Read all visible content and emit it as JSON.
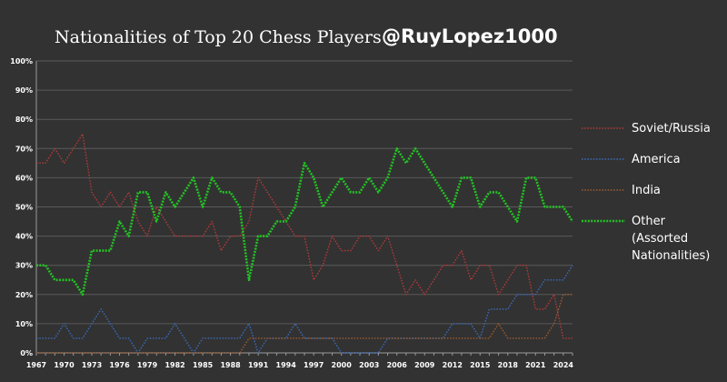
{
  "header": {
    "title": "Nationalities of Top 20 Chess Players",
    "handle": "@RuyLopez1000"
  },
  "colors": {
    "background": "#323232",
    "grid": "#5a5a5a",
    "axis": "#9a9a9a",
    "text": "#ffffff"
  },
  "chart_data": {
    "type": "line",
    "title": "Nationalities of Top 20 Chess Players",
    "xlabel": "",
    "ylabel": "",
    "x": [
      1967,
      1968,
      1969,
      1970,
      1971,
      1972,
      1973,
      1974,
      1975,
      1976,
      1977,
      1978,
      1979,
      1980,
      1981,
      1982,
      1983,
      1984,
      1985,
      1986,
      1987,
      1988,
      1989,
      1990,
      1991,
      1992,
      1993,
      1994,
      1995,
      1996,
      1997,
      1998,
      1999,
      2000,
      2001,
      2002,
      2003,
      2004,
      2005,
      2006,
      2007,
      2008,
      2009,
      2010,
      2011,
      2012,
      2013,
      2014,
      2015,
      2016,
      2017,
      2018,
      2019,
      2020,
      2021,
      2022,
      2023,
      2024,
      2025
    ],
    "x_ticks": [
      "1967",
      "1970",
      "1973",
      "1976",
      "1979",
      "1982",
      "1985",
      "1988",
      "1991",
      "1994",
      "1997",
      "2000",
      "2003",
      "2006",
      "2009",
      "2012",
      "2015",
      "2018",
      "2021",
      "2024"
    ],
    "y_ticks": [
      "0%",
      "10%",
      "20%",
      "30%",
      "40%",
      "50%",
      "60%",
      "70%",
      "80%",
      "90%",
      "100%"
    ],
    "ylim": [
      0,
      100
    ],
    "grid": true,
    "legend_position": "right",
    "series": [
      {
        "name": "Soviet/Russia",
        "color": "#b03a3a",
        "values": [
          65,
          65,
          70,
          65,
          70,
          75,
          55,
          50,
          55,
          50,
          55,
          45,
          40,
          50,
          45,
          40,
          40,
          40,
          40,
          45,
          35,
          40,
          40,
          45,
          60,
          55,
          50,
          45,
          40,
          40,
          25,
          30,
          40,
          35,
          35,
          40,
          40,
          35,
          40,
          30,
          20,
          25,
          20,
          25,
          30,
          30,
          35,
          25,
          30,
          30,
          20,
          25,
          30,
          30,
          15,
          15,
          20,
          5,
          5
        ]
      },
      {
        "name": "America",
        "color": "#3a6ab8",
        "values": [
          5,
          5,
          5,
          10,
          5,
          5,
          10,
          15,
          10,
          5,
          5,
          0,
          5,
          5,
          5,
          10,
          5,
          0,
          5,
          5,
          5,
          5,
          5,
          10,
          0,
          5,
          5,
          5,
          10,
          5,
          5,
          5,
          5,
          0,
          0,
          0,
          0,
          0,
          5,
          5,
          5,
          5,
          5,
          5,
          5,
          10,
          10,
          10,
          5,
          15,
          15,
          15,
          20,
          20,
          20,
          25,
          25,
          25,
          30
        ]
      },
      {
        "name": "India",
        "color": "#9a5a30",
        "values": [
          0,
          0,
          0,
          0,
          0,
          0,
          0,
          0,
          0,
          0,
          0,
          0,
          0,
          0,
          0,
          0,
          0,
          0,
          0,
          0,
          0,
          0,
          0,
          5,
          5,
          5,
          5,
          5,
          5,
          5,
          5,
          5,
          5,
          5,
          5,
          5,
          5,
          5,
          5,
          5,
          5,
          5,
          5,
          5,
          5,
          5,
          5,
          5,
          5,
          5,
          10,
          5,
          5,
          5,
          5,
          5,
          10,
          20,
          20
        ]
      },
      {
        "name": "Other\n(Assorted\nNationalities)",
        "color": "#22c422",
        "values": [
          30,
          30,
          25,
          25,
          25,
          20,
          35,
          35,
          35,
          45,
          40,
          55,
          55,
          45,
          55,
          50,
          55,
          60,
          50,
          60,
          55,
          55,
          50,
          25,
          40,
          40,
          45,
          45,
          50,
          65,
          60,
          50,
          55,
          60,
          55,
          55,
          60,
          55,
          60,
          70,
          65,
          70,
          65,
          60,
          55,
          50,
          60,
          60,
          50,
          55,
          55,
          50,
          45,
          60,
          60,
          50,
          50,
          50,
          45
        ]
      }
    ]
  }
}
